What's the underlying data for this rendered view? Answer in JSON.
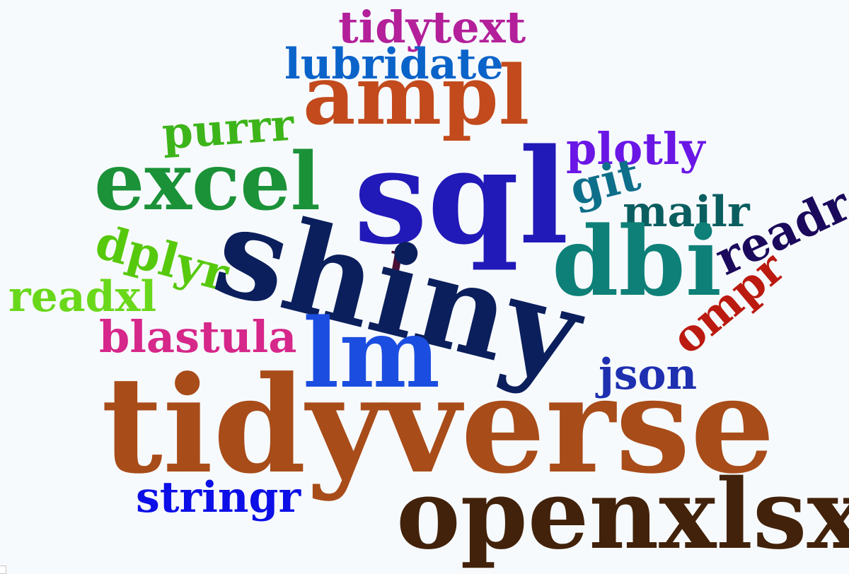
{
  "wordcloud": {
    "background": "#f7fafd",
    "words": [
      {
        "text": "tidytext",
        "color": "#b3209a"
      },
      {
        "text": "lubridate",
        "color": "#0a63c9"
      },
      {
        "text": "ampl",
        "color": "#c24a1c"
      },
      {
        "text": "purrr",
        "color": "#3db41a"
      },
      {
        "text": "plotly",
        "color": "#6a17e6"
      },
      {
        "text": "excel",
        "color": "#1b9238"
      },
      {
        "text": "sql",
        "color": "#2119b8"
      },
      {
        "text": "git",
        "color": "#0e6f8a"
      },
      {
        "text": "mailr",
        "color": "#0b5e5f"
      },
      {
        "text": "readr",
        "color": "#1b0a5c"
      },
      {
        "text": "dplyr",
        "color": "#57c90c"
      },
      {
        "text": "r",
        "color": "#4a1037"
      },
      {
        "text": "shiny",
        "color": "#0b1f5c"
      },
      {
        "text": "dbi",
        "color": "#0e8078"
      },
      {
        "text": "readxl",
        "color": "#6ad81a"
      },
      {
        "text": "ompr",
        "color": "#bb1a10"
      },
      {
        "text": "blastula",
        "color": "#d6278a"
      },
      {
        "text": "lm",
        "color": "#1b4ee0"
      },
      {
        "text": "json",
        "color": "#1e2fb0"
      },
      {
        "text": "tidyverse",
        "color": "#a84c19"
      },
      {
        "text": "stringr",
        "color": "#0c0fe6"
      },
      {
        "text": "openxlsx",
        "color": "#42220a"
      }
    ]
  }
}
